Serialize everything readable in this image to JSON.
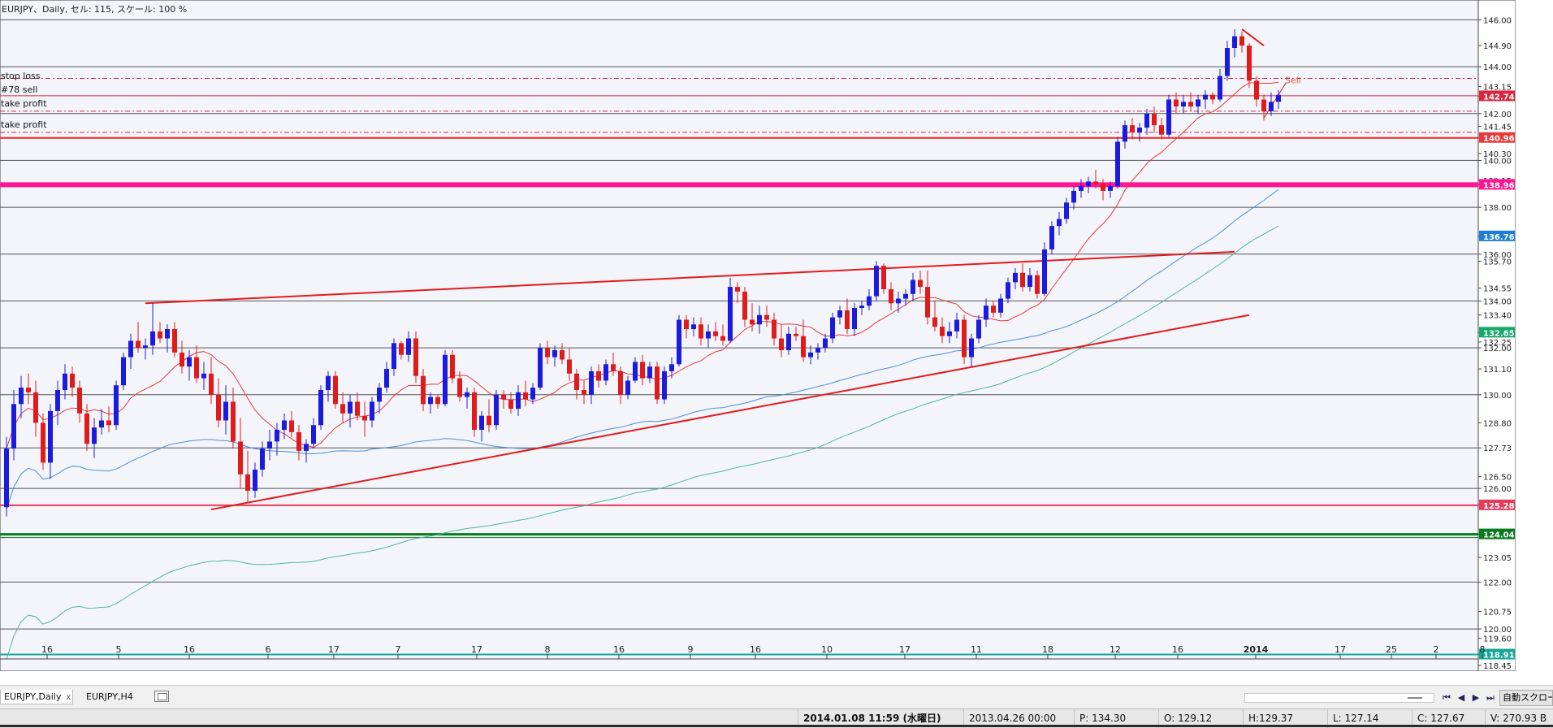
{
  "chart_title": "EURJPY、Daily, セル: 115, スケール: 100 %",
  "order_labels": {
    "stop_loss": "stop loss",
    "sell": "#78 sell",
    "take_profit_1": "take profit",
    "take_profit_2": "take profit",
    "sell_marker": "Sell"
  },
  "chart_data": {
    "type": "candlestick",
    "symbol": "EURJPY",
    "timeframe": "Daily",
    "ylim": [
      118.2,
      146.5
    ],
    "price_ticks": [
      "146.00",
      "144.90",
      "144.00",
      "143.15",
      "142.74",
      "142.00",
      "141.45",
      "140.96",
      "140.30",
      "140.00",
      "139.15",
      "138.96",
      "138.00",
      "136.76",
      "136.00",
      "135.70",
      "134.55",
      "134.00",
      "133.40",
      "132.65",
      "132.25",
      "132.00",
      "131.10",
      "130.00",
      "128.80",
      "127.73",
      "126.50",
      "126.00",
      "125.28",
      "124.04",
      "123.05",
      "122.00",
      "120.75",
      "120.00",
      "119.60",
      "118.91",
      "118.45"
    ],
    "highlighted_prices": [
      {
        "value": 142.74,
        "label": "142.74",
        "color": "#d7263d"
      },
      {
        "value": 140.96,
        "label": "140.96",
        "color": "#e83a3a"
      },
      {
        "value": 138.96,
        "label": "138.96",
        "color": "#ff1493"
      },
      {
        "value": 136.76,
        "label": "136.76",
        "color": "#1e7fd6"
      },
      {
        "value": 132.65,
        "label": "132.65",
        "color": "#17a86b"
      },
      {
        "value": 125.28,
        "label": "125.28",
        "color": "#e83a5a"
      },
      {
        "value": 124.04,
        "label": "124.04",
        "color": "#0a7a1e"
      },
      {
        "value": 118.91,
        "label": "118.91",
        "color": "#17a89a"
      }
    ],
    "time_ticks": [
      "16",
      "5",
      "16",
      "6",
      "17",
      "7",
      "17",
      "8",
      "16",
      "9",
      "16",
      "10",
      "17",
      "11",
      "18",
      "12",
      "16",
      "2014",
      "17",
      "25",
      "2",
      "8"
    ],
    "horizontal_levels": [
      146.0,
      144.0,
      142.0,
      140.0,
      138.0,
      136.0,
      134.0,
      132.0,
      130.0,
      127.73,
      126.0,
      122.0,
      120.0
    ],
    "colored_levels": [
      {
        "value": 140.96,
        "color": "#ee2222"
      },
      {
        "value": 138.96,
        "color": "#ff1493"
      },
      {
        "value": 125.28,
        "color": "#e83a5a"
      },
      {
        "value": 124.04,
        "color": "#0a7a1e"
      },
      {
        "value": 118.91,
        "color": "#17a89a"
      }
    ],
    "order_levels": [
      {
        "value": 143.5,
        "kind": "stop-loss"
      },
      {
        "value": 142.76,
        "kind": "sell"
      },
      {
        "value": 142.1,
        "kind": "take-profit"
      },
      {
        "value": 141.2,
        "kind": "take-profit"
      }
    ],
    "trendlines": [
      {
        "p1": [
          19,
          133.9
        ],
        "p2": [
          168,
          136.1
        ]
      },
      {
        "p1": [
          28,
          125.1
        ],
        "p2": [
          170,
          133.4
        ]
      }
    ],
    "ohlc": [
      [
        125.2,
        128.2,
        124.8,
        127.7
      ],
      [
        127.7,
        130.2,
        127.2,
        129.6
      ],
      [
        129.6,
        130.8,
        129.0,
        130.3
      ],
      [
        130.3,
        130.9,
        129.6,
        130.1
      ],
      [
        130.1,
        130.6,
        128.2,
        128.8
      ],
      [
        128.8,
        129.2,
        126.8,
        127.1
      ],
      [
        127.1,
        129.6,
        126.4,
        129.3
      ],
      [
        129.3,
        130.6,
        128.7,
        130.2
      ],
      [
        130.2,
        131.3,
        129.8,
        130.9
      ],
      [
        130.9,
        131.2,
        129.9,
        130.3
      ],
      [
        130.3,
        130.6,
        128.8,
        129.2
      ],
      [
        129.2,
        129.6,
        127.6,
        127.9
      ],
      [
        127.9,
        129.0,
        127.3,
        128.6
      ],
      [
        128.6,
        129.4,
        128.3,
        128.9
      ],
      [
        128.9,
        129.5,
        128.4,
        128.7
      ],
      [
        128.7,
        130.6,
        128.5,
        130.4
      ],
      [
        130.4,
        131.8,
        130.2,
        131.6
      ],
      [
        131.6,
        132.6,
        131.1,
        132.3
      ],
      [
        132.3,
        133.1,
        131.8,
        132.0
      ],
      [
        132.0,
        132.4,
        131.5,
        132.1
      ],
      [
        132.1,
        133.9,
        131.7,
        132.7
      ],
      [
        132.7,
        133.1,
        132.2,
        132.4
      ],
      [
        132.4,
        133.0,
        131.8,
        132.8
      ],
      [
        132.8,
        133.1,
        131.6,
        131.8
      ],
      [
        131.8,
        132.3,
        130.9,
        131.2
      ],
      [
        131.2,
        131.9,
        130.6,
        131.6
      ],
      [
        131.6,
        132.1,
        130.5,
        130.7
      ],
      [
        130.7,
        131.4,
        130.2,
        130.9
      ],
      [
        130.9,
        131.6,
        129.6,
        130.0
      ],
      [
        130.0,
        130.7,
        128.6,
        128.9
      ],
      [
        128.9,
        130.4,
        128.3,
        129.7
      ],
      [
        129.7,
        130.3,
        127.7,
        128.0
      ],
      [
        128.0,
        129.0,
        126.0,
        126.6
      ],
      [
        126.6,
        127.6,
        125.4,
        125.9
      ],
      [
        125.9,
        127.1,
        125.6,
        126.8
      ],
      [
        126.8,
        128.0,
        126.5,
        127.7
      ],
      [
        127.7,
        128.5,
        127.2,
        128.0
      ],
      [
        128.0,
        128.8,
        127.4,
        128.5
      ],
      [
        128.5,
        129.2,
        128.1,
        128.9
      ],
      [
        128.9,
        129.3,
        128.2,
        128.4
      ],
      [
        128.4,
        128.7,
        127.2,
        127.6
      ],
      [
        127.6,
        128.1,
        127.1,
        127.9
      ],
      [
        127.9,
        129.0,
        127.7,
        128.7
      ],
      [
        128.7,
        130.4,
        128.5,
        130.2
      ],
      [
        130.2,
        131.0,
        129.7,
        130.8
      ],
      [
        130.8,
        131.0,
        129.4,
        129.6
      ],
      [
        129.6,
        130.1,
        128.8,
        129.2
      ],
      [
        129.2,
        130.0,
        128.6,
        129.7
      ],
      [
        129.7,
        130.1,
        128.9,
        129.1
      ],
      [
        129.1,
        129.7,
        128.2,
        128.9
      ],
      [
        128.9,
        129.9,
        128.6,
        129.7
      ],
      [
        129.7,
        130.5,
        129.2,
        130.3
      ],
      [
        130.3,
        131.4,
        130.1,
        131.1
      ],
      [
        131.1,
        132.4,
        130.8,
        132.2
      ],
      [
        132.2,
        132.3,
        131.5,
        131.7
      ],
      [
        131.7,
        132.7,
        131.4,
        132.4
      ],
      [
        132.4,
        132.7,
        130.5,
        130.8
      ],
      [
        130.8,
        131.1,
        129.3,
        129.6
      ],
      [
        129.6,
        130.1,
        129.2,
        129.9
      ],
      [
        129.9,
        130.0,
        129.4,
        129.6
      ],
      [
        129.6,
        131.9,
        129.5,
        131.7
      ],
      [
        131.7,
        131.9,
        130.5,
        130.7
      ],
      [
        130.7,
        131.0,
        129.7,
        129.9
      ],
      [
        129.9,
        130.3,
        129.4,
        130.1
      ],
      [
        130.1,
        130.3,
        128.2,
        128.5
      ],
      [
        128.5,
        129.3,
        128.0,
        129.1
      ],
      [
        129.1,
        129.8,
        128.4,
        128.7
      ],
      [
        128.7,
        130.2,
        128.5,
        130.0
      ],
      [
        130.0,
        130.2,
        129.4,
        129.8
      ],
      [
        129.8,
        130.1,
        129.2,
        129.4
      ],
      [
        129.4,
        130.4,
        129.1,
        130.1
      ],
      [
        130.1,
        130.6,
        129.5,
        129.8
      ],
      [
        129.8,
        130.5,
        129.6,
        130.3
      ],
      [
        130.3,
        132.2,
        130.2,
        132.0
      ],
      [
        132.0,
        132.3,
        131.3,
        131.6
      ],
      [
        131.6,
        132.1,
        131.2,
        131.9
      ],
      [
        131.9,
        132.2,
        131.3,
        131.5
      ],
      [
        131.5,
        132.0,
        130.6,
        130.9
      ],
      [
        130.9,
        131.1,
        129.8,
        130.2
      ],
      [
        130.2,
        130.6,
        129.6,
        130.0
      ],
      [
        130.0,
        131.2,
        129.6,
        131.0
      ],
      [
        131.0,
        131.3,
        130.3,
        130.6
      ],
      [
        130.6,
        131.5,
        130.4,
        131.3
      ],
      [
        131.3,
        131.8,
        130.8,
        131.0
      ],
      [
        131.0,
        131.2,
        129.6,
        130.0
      ],
      [
        130.0,
        130.8,
        129.8,
        130.6
      ],
      [
        130.6,
        131.6,
        130.5,
        131.4
      ],
      [
        131.4,
        131.7,
        130.4,
        130.7
      ],
      [
        130.7,
        131.4,
        130.5,
        131.2
      ],
      [
        131.2,
        131.4,
        129.6,
        129.8
      ],
      [
        129.8,
        131.2,
        129.6,
        131.0
      ],
      [
        131.0,
        131.6,
        130.7,
        131.3
      ],
      [
        131.3,
        133.4,
        131.2,
        133.2
      ],
      [
        133.2,
        133.4,
        132.4,
        132.8
      ],
      [
        132.8,
        133.3,
        132.5,
        133.0
      ],
      [
        133.0,
        133.3,
        132.1,
        132.4
      ],
      [
        132.4,
        133.0,
        132.0,
        132.7
      ],
      [
        132.7,
        133.1,
        132.3,
        132.5
      ],
      [
        132.5,
        133.0,
        132.1,
        132.3
      ],
      [
        132.3,
        135.0,
        132.2,
        134.6
      ],
      [
        134.6,
        134.8,
        133.9,
        134.4
      ],
      [
        134.4,
        134.6,
        132.9,
        133.2
      ],
      [
        133.2,
        133.9,
        132.7,
        133.0
      ],
      [
        133.0,
        133.8,
        132.6,
        133.4
      ],
      [
        133.4,
        133.8,
        132.9,
        133.2
      ],
      [
        133.2,
        133.5,
        132.1,
        132.4
      ],
      [
        132.4,
        133.0,
        131.6,
        131.9
      ],
      [
        131.9,
        132.9,
        131.7,
        132.6
      ],
      [
        132.6,
        132.9,
        132.3,
        132.5
      ],
      [
        132.5,
        133.2,
        131.4,
        131.6
      ],
      [
        131.6,
        132.1,
        131.3,
        131.8
      ],
      [
        131.8,
        132.2,
        131.5,
        132.0
      ],
      [
        132.0,
        132.6,
        131.8,
        132.4
      ],
      [
        132.4,
        133.5,
        132.2,
        133.3
      ],
      [
        133.3,
        133.8,
        133.0,
        133.6
      ],
      [
        133.6,
        134.1,
        132.6,
        132.8
      ],
      [
        132.8,
        133.9,
        132.5,
        133.7
      ],
      [
        133.7,
        134.0,
        133.4,
        133.8
      ],
      [
        133.8,
        134.5,
        133.6,
        134.2
      ],
      [
        134.2,
        135.7,
        134.0,
        135.5
      ],
      [
        135.5,
        135.6,
        134.3,
        134.5
      ],
      [
        134.5,
        134.8,
        133.6,
        133.9
      ],
      [
        133.9,
        134.4,
        133.5,
        134.1
      ],
      [
        134.1,
        134.5,
        133.8,
        134.3
      ],
      [
        134.3,
        135.2,
        134.0,
        134.9
      ],
      [
        134.9,
        135.3,
        134.3,
        134.6
      ],
      [
        134.6,
        135.3,
        133.0,
        133.3
      ],
      [
        133.3,
        134.0,
        132.7,
        132.9
      ],
      [
        132.9,
        133.3,
        132.2,
        132.5
      ],
      [
        132.5,
        133.1,
        132.2,
        132.7
      ],
      [
        132.7,
        133.5,
        132.4,
        133.2
      ],
      [
        133.2,
        133.4,
        131.3,
        131.6
      ],
      [
        131.6,
        132.6,
        131.2,
        132.4
      ],
      [
        132.4,
        133.4,
        132.2,
        133.2
      ],
      [
        133.2,
        134.1,
        132.9,
        133.8
      ],
      [
        133.8,
        134.0,
        133.3,
        133.5
      ],
      [
        133.5,
        134.3,
        133.3,
        134.1
      ],
      [
        134.1,
        135.0,
        133.9,
        134.8
      ],
      [
        134.8,
        135.4,
        134.5,
        135.2
      ],
      [
        135.2,
        135.6,
        134.4,
        134.6
      ],
      [
        134.6,
        135.4,
        134.4,
        135.1
      ],
      [
        135.1,
        135.3,
        134.1,
        134.3
      ],
      [
        134.3,
        136.5,
        134.2,
        136.2
      ],
      [
        136.2,
        137.4,
        136.0,
        137.2
      ],
      [
        137.2,
        137.8,
        136.8,
        137.5
      ],
      [
        137.5,
        138.4,
        137.3,
        138.2
      ],
      [
        138.2,
        138.9,
        137.9,
        138.7
      ],
      [
        138.7,
        139.2,
        138.4,
        138.9
      ],
      [
        138.9,
        139.3,
        138.6,
        139.1
      ],
      [
        139.1,
        139.6,
        138.8,
        139.0
      ],
      [
        139.0,
        139.2,
        138.3,
        138.7
      ],
      [
        138.7,
        139.1,
        138.4,
        138.9
      ],
      [
        138.9,
        141.0,
        138.8,
        140.8
      ],
      [
        140.8,
        141.7,
        140.5,
        141.5
      ],
      [
        141.5,
        141.8,
        140.9,
        141.2
      ],
      [
        141.2,
        141.6,
        140.8,
        141.4
      ],
      [
        141.4,
        142.2,
        141.1,
        142.0
      ],
      [
        142.0,
        142.3,
        141.2,
        141.5
      ],
      [
        141.5,
        141.8,
        140.9,
        141.1
      ],
      [
        141.1,
        142.8,
        141.0,
        142.6
      ],
      [
        142.6,
        142.9,
        142.0,
        142.3
      ],
      [
        142.3,
        142.8,
        142.0,
        142.5
      ],
      [
        142.5,
        142.9,
        142.1,
        142.3
      ],
      [
        142.3,
        142.8,
        142.0,
        142.6
      ],
      [
        142.6,
        143.0,
        142.2,
        142.8
      ],
      [
        142.8,
        142.9,
        142.4,
        142.6
      ],
      [
        142.6,
        143.9,
        142.5,
        143.6
      ],
      [
        143.6,
        145.1,
        143.4,
        144.8
      ],
      [
        144.8,
        145.6,
        144.4,
        145.3
      ],
      [
        145.3,
        145.5,
        144.6,
        144.9
      ],
      [
        144.9,
        145.0,
        143.1,
        143.4
      ],
      [
        143.4,
        143.6,
        142.3,
        142.6
      ],
      [
        142.6,
        142.8,
        141.7,
        142.1
      ],
      [
        142.1,
        142.9,
        141.9,
        142.5
      ],
      [
        142.5,
        143.0,
        142.2,
        142.8
      ]
    ],
    "ma_fast_color": "#e83a3a",
    "ma_mid_color": "#4a8fd8",
    "ma_slow_color": "#4cb89a"
  },
  "tabs": [
    {
      "label": "EURJPY,Daily",
      "close": "x"
    },
    {
      "label": "EURJPY,H4"
    }
  ],
  "autoscroll_label": "自動スクロール",
  "status": {
    "datetime": "2014.01.08 11:59 (水曜日)",
    "bar_time": "2013.04.26 00:00",
    "price": "P: 134.30",
    "open": "O: 129.12",
    "high": "H:129.37",
    "low": "L: 127.14",
    "close": "C: 127.67",
    "volume": "V: 270.93 B"
  },
  "nav_icons": [
    "first-icon",
    "prev-icon",
    "next-icon",
    "last-icon"
  ]
}
